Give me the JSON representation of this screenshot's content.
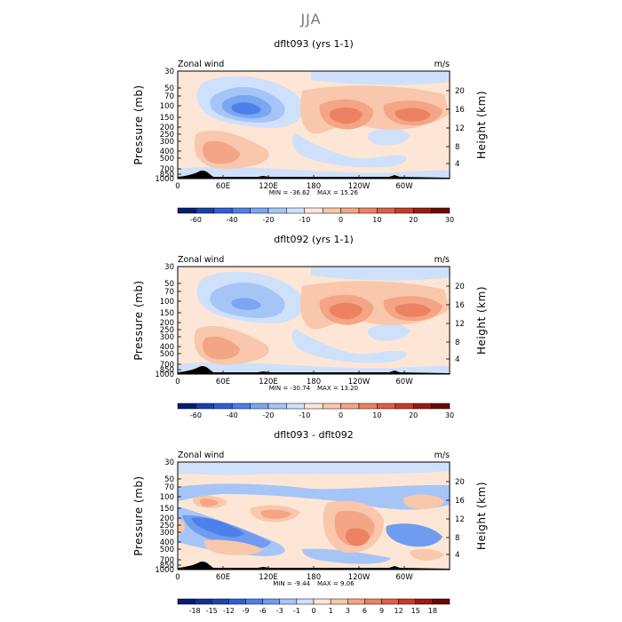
{
  "figure_title": "JJA",
  "panel_common": {
    "left_label": "Zonal wind",
    "right_label": "m/s",
    "ylabel": "Pressure (mb)",
    "ylabel_right": "Height (km)",
    "pressure_ticks": [
      "30",
      "50",
      "70",
      "100",
      "150",
      "200",
      "250",
      "300",
      "400",
      "500",
      "700",
      "850",
      "1000"
    ],
    "height_ticks": [
      "20",
      "16",
      "12",
      "8",
      "4"
    ],
    "lon_ticks": [
      "0",
      "60E",
      "120E",
      "180",
      "120W",
      "60W"
    ]
  },
  "chart_data": [
    {
      "type": "contour",
      "title": "dflt093 (yrs 1-1)",
      "min_label": "MIN = -36.62",
      "max_label": "MAX = 15.26",
      "colorbar_labels": [
        "-60",
        "-40",
        "-20",
        "-10",
        "0",
        "10",
        "20",
        "30"
      ],
      "colors": [
        "#051d75",
        "#1a3fa8",
        "#2f5fd8",
        "#4d80ea",
        "#7aa6f2",
        "#a6c5f7",
        "#cfe0fa",
        "#fde6d6",
        "#f9c7ab",
        "#f3a585",
        "#ec8262",
        "#e05f44",
        "#c93a25",
        "#9c1a10",
        "#6a0805"
      ]
    },
    {
      "type": "contour",
      "title": "dflt092 (yrs 1-1)",
      "min_label": "MIN = -30.74",
      "max_label": "MAX = 13.20",
      "colorbar_labels": [
        "-60",
        "-40",
        "-20",
        "-10",
        "0",
        "10",
        "20",
        "30"
      ],
      "colors": [
        "#051d75",
        "#1a3fa8",
        "#2f5fd8",
        "#4d80ea",
        "#7aa6f2",
        "#a6c5f7",
        "#cfe0fa",
        "#fde6d6",
        "#f9c7ab",
        "#f3a585",
        "#ec8262",
        "#e05f44",
        "#c93a25",
        "#9c1a10",
        "#6a0805"
      ]
    },
    {
      "type": "contour",
      "title": "dflt093 - dflt092",
      "min_label": "MIN = -9.44",
      "max_label": "MAX = 9.06",
      "colorbar_labels": [
        "-18",
        "-15",
        "-12",
        "-9",
        "-6",
        "-3",
        "-1",
        "0",
        "1",
        "3",
        "6",
        "9",
        "12",
        "15",
        "18"
      ],
      "colors": [
        "#051d75",
        "#12308f",
        "#1f44b0",
        "#2f5fd8",
        "#4d80ea",
        "#6f9cf0",
        "#a6c5f7",
        "#cfe0fa",
        "#fde6d6",
        "#f9c7ab",
        "#f3a585",
        "#ec8262",
        "#e05f44",
        "#c93a25",
        "#9c1a10",
        "#6a0805"
      ]
    }
  ]
}
